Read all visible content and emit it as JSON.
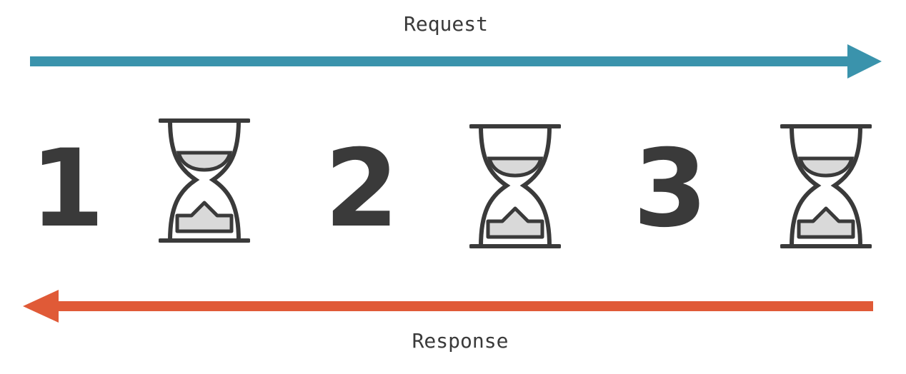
{
  "request": {
    "label": "Request",
    "color": "#3A93AC",
    "direction": "right"
  },
  "response": {
    "label": "Response",
    "color": "#E05A37",
    "direction": "left"
  },
  "steps": [
    {
      "number": "1",
      "icon": "hourglass-icon"
    },
    {
      "number": "2",
      "icon": "hourglass-icon"
    },
    {
      "number": "3",
      "icon": "hourglass-icon"
    }
  ],
  "colors": {
    "text": "#3A3A3A",
    "icon_stroke": "#3A3A3A",
    "icon_fill": "#D9D9D9"
  }
}
